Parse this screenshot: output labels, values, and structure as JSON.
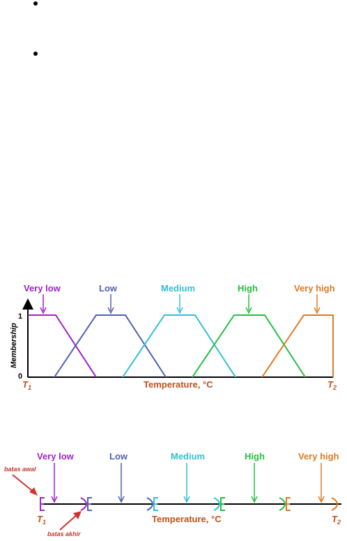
{
  "diagram_top": {
    "y_axis_label": "Membership",
    "y_ticks": [
      "1",
      "0"
    ],
    "x_axis_label": "Temperature, °C",
    "t1_label": "T",
    "t1_sub": "1",
    "t2_label": "T",
    "t2_sub": "2",
    "sets": [
      {
        "name": "Very low",
        "color": "#a020c8"
      },
      {
        "name": "Low",
        "color": "#5060b0"
      },
      {
        "name": "Medium",
        "color": "#30c0d0"
      },
      {
        "name": "High",
        "color": "#22c040"
      },
      {
        "name": "Very high",
        "color": "#e07a20"
      }
    ]
  },
  "diagram_bottom": {
    "x_axis_label": "Temperature, °C",
    "t1_label": "T",
    "t1_sub": "1",
    "t2_label": "T",
    "t2_sub": "2",
    "annotation_start": "batas awal",
    "annotation_end": "batas akhir",
    "annotation_color": "#d03030",
    "sets": [
      {
        "name": "Very low",
        "color": "#a020c8"
      },
      {
        "name": "Low",
        "color": "#5060b0"
      },
      {
        "name": "Medium",
        "color": "#30c0d0"
      },
      {
        "name": "High",
        "color": "#22c040"
      },
      {
        "name": "Very high",
        "color": "#e07a20"
      }
    ]
  }
}
